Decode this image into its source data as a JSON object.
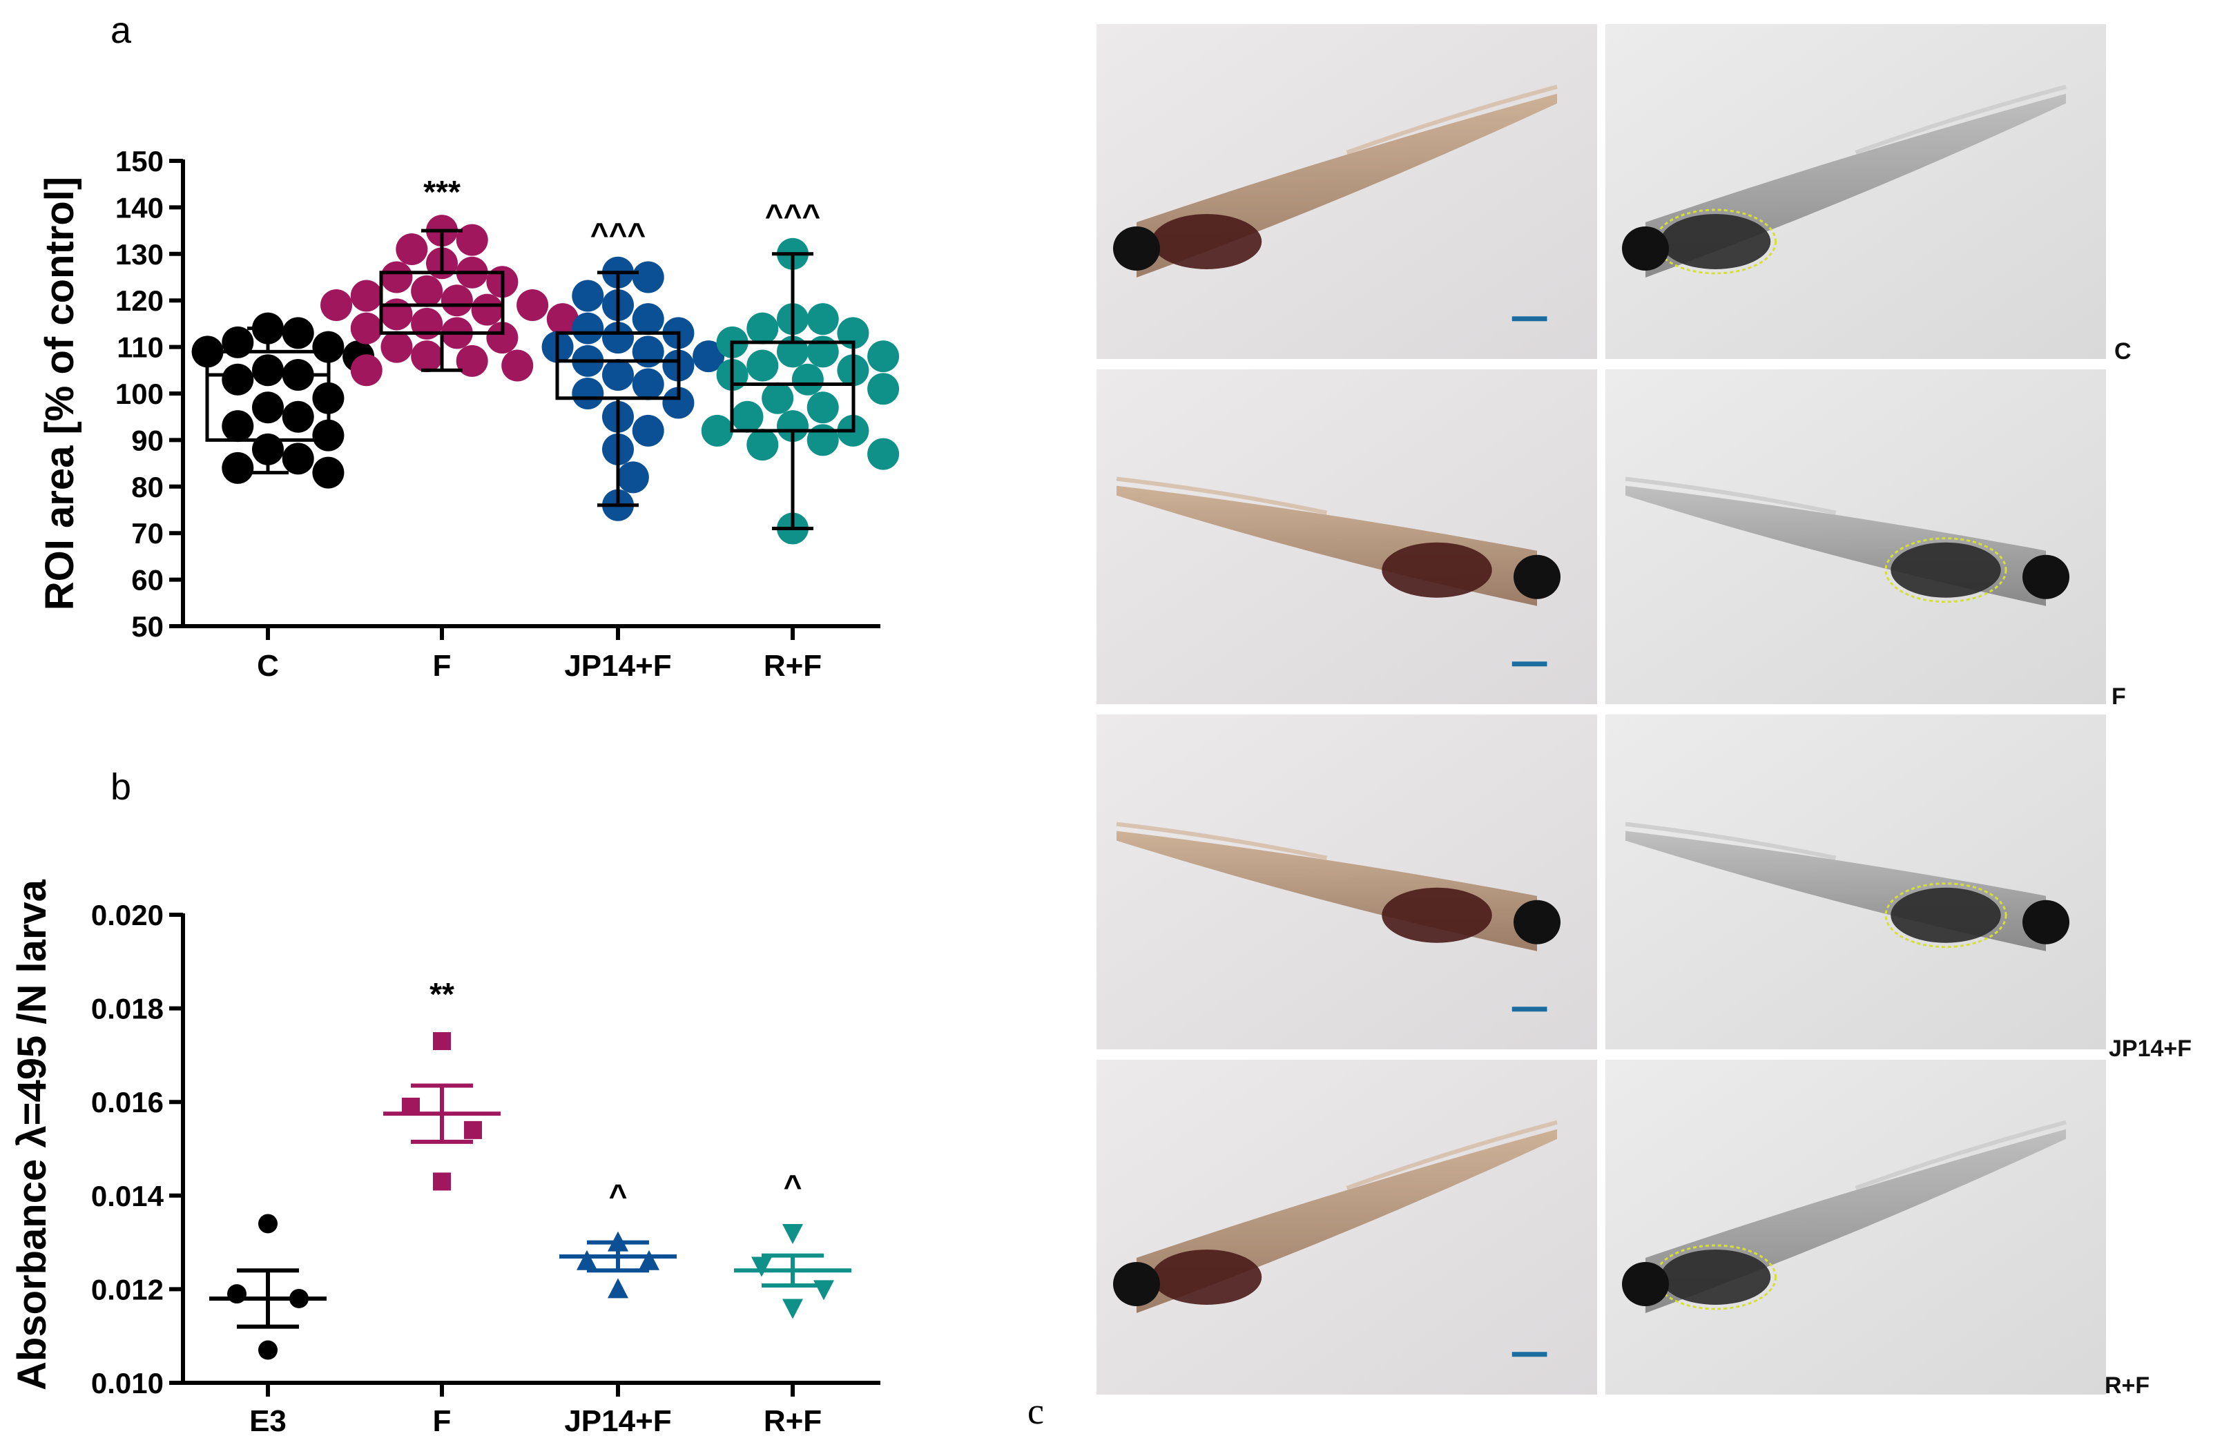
{
  "panel_labels": {
    "a": "a",
    "b": "b",
    "c": "c"
  },
  "chart_data": [
    {
      "type": "scatter",
      "subtype": "box-and-whisker with individual points",
      "panel": "a",
      "ylabel": "ROI area [% of control]",
      "ylim": [
        50,
        150
      ],
      "yticks": [
        "50",
        "60",
        "70",
        "80",
        "90",
        "100",
        "110",
        "120",
        "130",
        "140",
        "150"
      ],
      "categories": [
        "C",
        "F",
        "JP14+F",
        "R+F"
      ],
      "significance": [
        "",
        "***",
        "^^^",
        "^^^"
      ],
      "grid": false,
      "series": [
        {
          "color": "#000000",
          "box": {
            "min": 83,
            "q1": 90,
            "median": 104,
            "q3": 109,
            "max": 114
          },
          "points": [
            114,
            113,
            111,
            110,
            109,
            108,
            105,
            104,
            103,
            99,
            97,
            95,
            93,
            91,
            88,
            86,
            84,
            83
          ]
        },
        {
          "color": "#a0175e",
          "box": {
            "min": 105,
            "q1": 113,
            "median": 119,
            "q3": 126,
            "max": 135
          },
          "points": [
            135,
            133,
            131,
            128,
            126,
            125,
            124,
            122,
            121,
            120,
            119,
            119,
            118,
            117,
            116,
            115,
            114,
            113,
            112,
            110,
            108,
            107,
            106,
            105
          ]
        },
        {
          "color": "#0b4f94",
          "box": {
            "min": 76,
            "q1": 99,
            "median": 107,
            "q3": 113,
            "max": 126
          },
          "points": [
            126,
            125,
            121,
            119,
            116,
            114,
            113,
            112,
            110,
            109,
            108,
            107,
            106,
            104,
            102,
            100,
            98,
            95,
            92,
            88,
            82,
            76
          ]
        },
        {
          "color": "#0f918a",
          "box": {
            "min": 71,
            "q1": 92,
            "median": 102,
            "q3": 111,
            "max": 130
          },
          "points": [
            130,
            116,
            116,
            114,
            113,
            111,
            109,
            109,
            108,
            106,
            105,
            104,
            103,
            101,
            99,
            97,
            95,
            93,
            92,
            92,
            90,
            89,
            87,
            71
          ]
        }
      ]
    },
    {
      "type": "scatter",
      "subtype": "mean with SEM error bars and individual points",
      "panel": "b",
      "ylabel": "Absorbance λ=495 /N larva",
      "ylim": [
        0.01,
        0.02
      ],
      "yticks": [
        "0.010",
        "0.012",
        "0.014",
        "0.016",
        "0.018",
        "0.020"
      ],
      "categories": [
        "E3",
        "F",
        "JP14+F",
        "R+F"
      ],
      "significance": [
        "",
        "**",
        "^",
        "^"
      ],
      "grid": false,
      "series": [
        {
          "color": "#000000",
          "marker": "circle",
          "mean": 0.0118,
          "sem": 0.0006,
          "points": [
            0.0134,
            0.0119,
            0.0118,
            0.0107
          ]
        },
        {
          "color": "#a0175e",
          "marker": "square",
          "mean": 0.01575,
          "sem": 0.0006,
          "points": [
            0.0173,
            0.0159,
            0.0154,
            0.0143
          ]
        },
        {
          "color": "#0b4f94",
          "marker": "triangle-up",
          "mean": 0.0127,
          "sem": 0.0003,
          "points": [
            0.013,
            0.0126,
            0.0126,
            0.012
          ]
        },
        {
          "color": "#0f918a",
          "marker": "triangle-down",
          "mean": 0.0124,
          "sem": 0.00032,
          "points": [
            0.0132,
            0.0125,
            0.012,
            0.0116
          ]
        }
      ]
    }
  ],
  "micrographs": {
    "row_labels": [
      "C",
      "F",
      "JP14+F",
      "R+F"
    ],
    "columns": [
      "brightfield",
      "ROI outlined"
    ],
    "scale_bar_color": "#1a6d9e",
    "outline_color": "#d4e036"
  }
}
